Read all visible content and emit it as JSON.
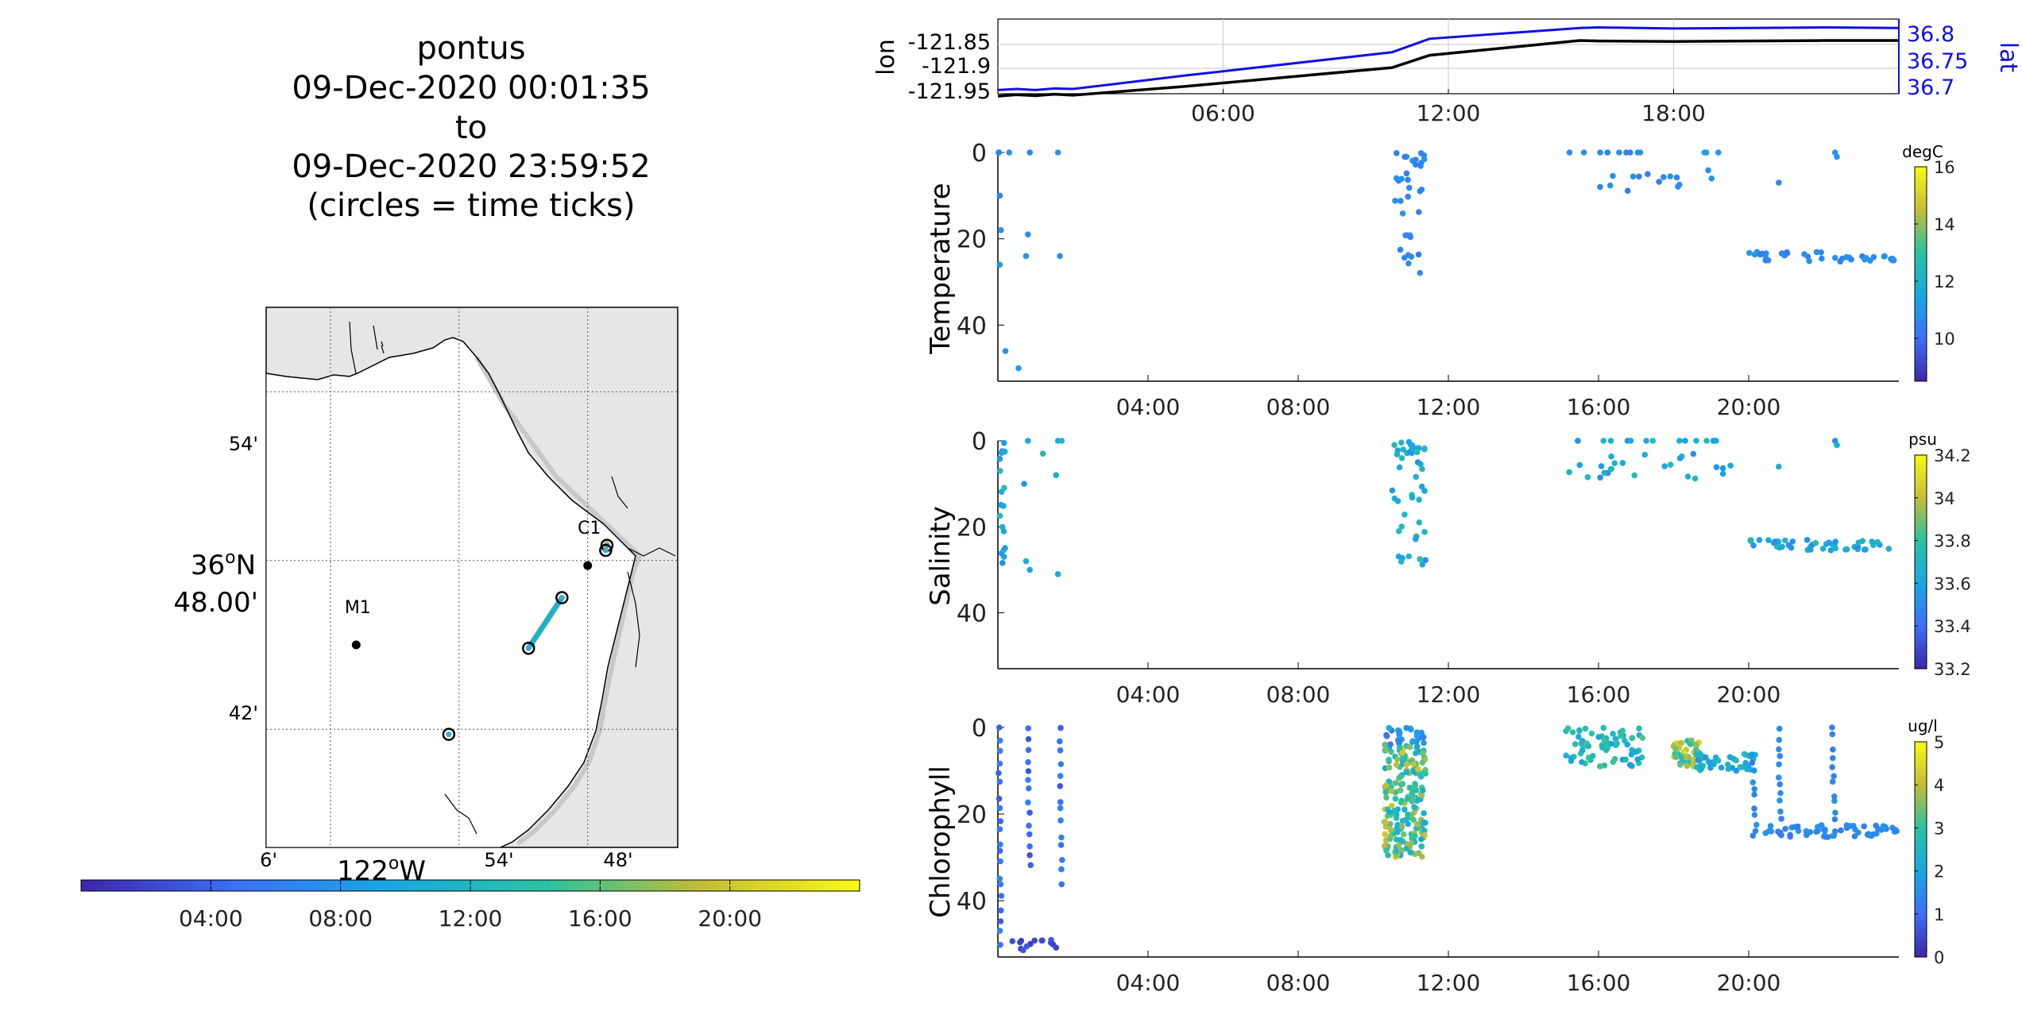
{
  "title": {
    "lines": [
      "pontus",
      "09-Dec-2020 00:01:35",
      "to",
      "09-Dec-2020 23:59:52",
      "(circles = time ticks)"
    ]
  },
  "map": {
    "lat_labels": [
      "54'",
      "36",
      "o",
      "N",
      "48.00'",
      "42'"
    ],
    "lon_labels": [
      "6'",
      "122",
      "o",
      "W",
      "54'",
      "48'"
    ],
    "stations": [
      {
        "name": "M1",
        "lon": -122.03,
        "lat": 36.75
      },
      {
        "name": "C1",
        "lon": -121.85,
        "lat": 36.797
      }
    ],
    "track_segments": [
      {
        "lon": [
          -121.896,
          -121.87
        ],
        "lat": [
          36.748,
          36.778
        ],
        "color": "#22b0c6"
      },
      {
        "lon": [
          -121.837,
          -121.835
        ],
        "lat": [
          36.807,
          36.81
        ],
        "color": "#f0c23a"
      }
    ],
    "circle_points": [
      {
        "lon": -121.958,
        "lat": 36.697
      },
      {
        "lon": -121.896,
        "lat": 36.748
      },
      {
        "lon": -121.87,
        "lat": 36.778
      },
      {
        "lon": -121.835,
        "lat": 36.809
      },
      {
        "lon": -121.836,
        "lat": 36.806
      }
    ]
  },
  "time_colorbar": {
    "ticks": [
      "04:00",
      "08:00",
      "12:00",
      "16:00",
      "20:00"
    ],
    "tick_hours": [
      4,
      8,
      12,
      16,
      20
    ],
    "range_hours": [
      0,
      24
    ]
  },
  "lonlat_panel": {
    "ylabel_left": "lon",
    "ylabel_right": "lat",
    "left_ticks": [
      "-121.85",
      "-121.9",
      "-121.95"
    ],
    "right_ticks": [
      "36.8",
      "36.75",
      "36.7"
    ],
    "x_ticks": [
      "06:00",
      "12:00",
      "18:00"
    ],
    "lon_series": {
      "hours": [
        0,
        0.5,
        1,
        1.5,
        2,
        5,
        10.5,
        11.5,
        15.5,
        16,
        18,
        20,
        22,
        24
      ],
      "values": [
        -121.955,
        -121.952,
        -121.954,
        -121.951,
        -121.953,
        -121.935,
        -121.897,
        -121.872,
        -121.842,
        -121.843,
        -121.844,
        -121.843,
        -121.842,
        -121.842
      ]
    },
    "lat_series": {
      "hours": [
        0,
        0.5,
        1,
        1.5,
        2,
        5,
        10.5,
        11.5,
        15.5,
        16,
        18,
        20,
        22,
        24
      ],
      "values": [
        36.695,
        36.697,
        36.695,
        36.698,
        36.697,
        36.722,
        36.765,
        36.79,
        36.81,
        36.811,
        36.809,
        36.81,
        36.811,
        36.81
      ]
    }
  },
  "chart_data": [
    {
      "type": "scatter",
      "ylabel": "Temperature",
      "units": "degC",
      "x_ticks": [
        "04:00",
        "08:00",
        "12:00",
        "16:00",
        "20:00"
      ],
      "y_ticks": [
        "0",
        "20",
        "40"
      ],
      "ylim": [
        0,
        53
      ],
      "xlim_hours": [
        0,
        24
      ],
      "cbar_ticks": [
        "16",
        "14",
        "12",
        "10"
      ],
      "cbar_range": [
        8.5,
        16
      ]
    },
    {
      "type": "scatter",
      "ylabel": "Salinity",
      "units": "psu",
      "x_ticks": [
        "04:00",
        "08:00",
        "12:00",
        "16:00",
        "20:00"
      ],
      "y_ticks": [
        "0",
        "20",
        "40"
      ],
      "ylim": [
        0,
        53
      ],
      "xlim_hours": [
        0,
        24
      ],
      "cbar_ticks": [
        "34.2",
        "34",
        "33.8",
        "33.6",
        "33.4",
        "33.2"
      ],
      "cbar_range": [
        33.2,
        34.2
      ]
    },
    {
      "type": "scatter",
      "ylabel": "Chlorophyll",
      "units": "ug/l",
      "x_ticks": [
        "04:00",
        "08:00",
        "12:00",
        "16:00",
        "20:00"
      ],
      "y_ticks": [
        "0",
        "20",
        "40"
      ],
      "ylim": [
        0,
        53
      ],
      "xlim_hours": [
        0,
        24
      ],
      "cbar_ticks": [
        "5",
        "4",
        "3",
        "2",
        "1",
        "0"
      ],
      "cbar_range": [
        0,
        5
      ]
    }
  ]
}
